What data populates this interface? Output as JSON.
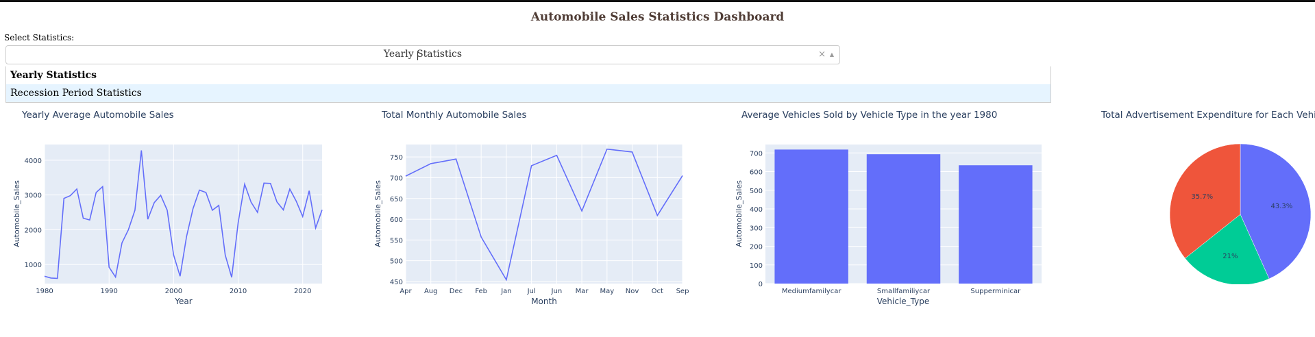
{
  "app": {
    "title": "Automobile Sales Statistics Dashboard"
  },
  "dropdown": {
    "label": "Select Statistics:",
    "value": "Yearly Statistics",
    "options": [
      "Yearly Statistics",
      "Recession Period Statistics"
    ],
    "clear_icon": "close-icon",
    "arrow_icon": "caret-up-icon"
  },
  "chart_data": [
    {
      "type": "line",
      "title": "Yearly Average Automobile Sales",
      "xlabel": "Year",
      "ylabel": "Automobile_Sales",
      "xlim": [
        1980,
        2023
      ],
      "ylim": [
        450,
        4450
      ],
      "xticks": [
        1980,
        1990,
        2000,
        2010,
        2020
      ],
      "yticks": [
        1000,
        2000,
        3000,
        4000
      ],
      "color": "#636efa",
      "x": [
        1980,
        1981,
        1982,
        1983,
        1984,
        1985,
        1986,
        1987,
        1988,
        1989,
        1990,
        1991,
        1992,
        1993,
        1994,
        1995,
        1996,
        1997,
        1998,
        1999,
        2000,
        2001,
        2002,
        2003,
        2004,
        2005,
        2006,
        2007,
        2008,
        2009,
        2010,
        2011,
        2012,
        2013,
        2014,
        2015,
        2016,
        2017,
        2018,
        2019,
        2020,
        2021,
        2022,
        2023
      ],
      "y": [
        660,
        610,
        600,
        2900,
        2980,
        3170,
        2330,
        2280,
        3070,
        3240,
        920,
        640,
        1620,
        2000,
        2560,
        4280,
        2300,
        2780,
        2990,
        2560,
        1270,
        660,
        1800,
        2600,
        3140,
        3070,
        2560,
        2700,
        1270,
        630,
        2210,
        3310,
        2790,
        2500,
        3340,
        3330,
        2800,
        2570,
        3170,
        2820,
        2380,
        3120,
        2050,
        2570
      ]
    },
    {
      "type": "line",
      "title": "Total Monthly Automobile Sales",
      "xlabel": "Month",
      "ylabel": "Automobile_Sales",
      "ylim": [
        445,
        780
      ],
      "yticks": [
        450,
        500,
        550,
        600,
        650,
        700,
        750
      ],
      "color": "#636efa",
      "categories": [
        "Apr",
        "Aug",
        "Dec",
        "Feb",
        "Jan",
        "Jul",
        "Jun",
        "Mar",
        "May",
        "Nov",
        "Oct",
        "Sep"
      ],
      "values": [
        704,
        734,
        745,
        557,
        454,
        729,
        754,
        620,
        769,
        762,
        609,
        705
      ]
    },
    {
      "type": "bar",
      "title": "Average Vehicles Sold by Vehicle Type in the year 1980",
      "xlabel": "Vehicle_Type",
      "ylabel": "Automobile_Sales",
      "ylim": [
        0,
        745
      ],
      "yticks": [
        0,
        100,
        200,
        300,
        400,
        500,
        600,
        700
      ],
      "color": "#636efa",
      "categories": [
        "Mediumfamilycar",
        "Smallfamiliycar",
        "Supperminicar"
      ],
      "values": [
        718,
        693,
        634
      ]
    },
    {
      "type": "pie",
      "title": "Total Advertisement Expenditure for Each Vehicle",
      "slices": [
        {
          "value": 43.3,
          "label": "43.3%",
          "color": "#636efa"
        },
        {
          "value": 21,
          "label": "21%",
          "color": "#00cc96"
        },
        {
          "value": 35.7,
          "label": "35.7%",
          "color": "#ef553b"
        }
      ]
    }
  ]
}
